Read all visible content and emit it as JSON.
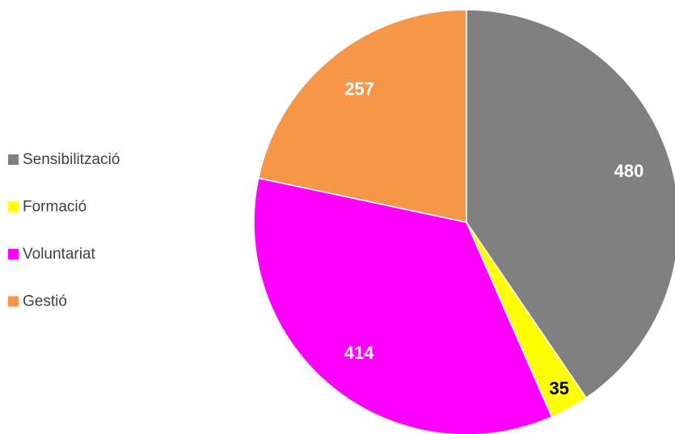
{
  "chart_data": {
    "type": "pie",
    "categories": [
      "Sensibilització",
      "Formació",
      "Voluntariat",
      "Gestió"
    ],
    "values": [
      480,
      35,
      414,
      257
    ],
    "colors": [
      "#808080",
      "#ffff00",
      "#ff00ff",
      "#f79646"
    ],
    "legend": "left"
  }
}
